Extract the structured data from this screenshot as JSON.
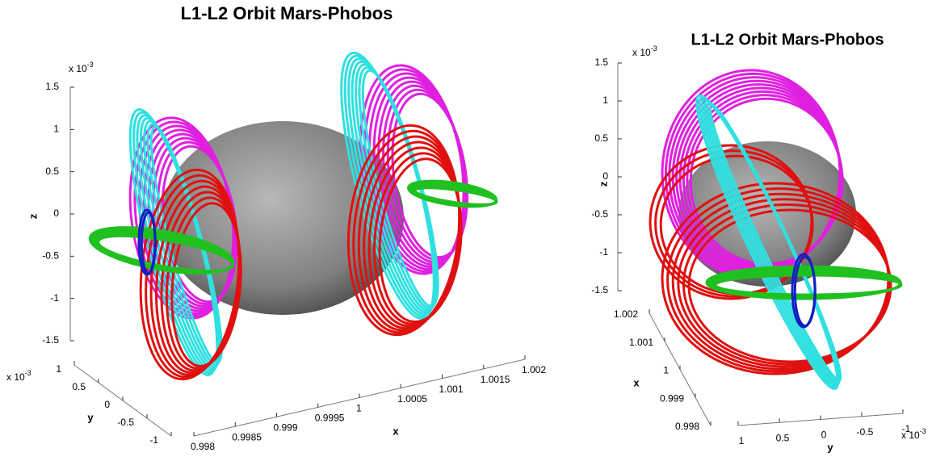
{
  "chart_data": [
    {
      "type": "orbit3d",
      "title": "L1-L2 Orbit Mars-Phobos",
      "xlabel": "x",
      "ylabel": "y",
      "zlabel": "z",
      "xlim": [
        0.998,
        1.002
      ],
      "xticks": [
        0.998,
        0.9985,
        0.999,
        0.9995,
        1,
        1.0005,
        1.001,
        1.0015,
        1.002
      ],
      "ylim": [
        -1,
        1
      ],
      "yticks": [
        -1,
        -0.5,
        0,
        0.5,
        1
      ],
      "y_multiplier": {
        "base": "x 10",
        "exponent": "-3"
      },
      "zlim": [
        -1.5,
        1.5
      ],
      "zticks": [
        -1.5,
        -1,
        -0.5,
        0,
        0.5,
        1,
        1.5
      ],
      "z_multiplier": {
        "base": "x 10",
        "exponent": "-3"
      },
      "orbit_colors": [
        "#e020e0",
        "#30e0e0",
        "#e01010",
        "#20c020",
        "#1020c0"
      ]
    },
    {
      "type": "orbit3d",
      "title": "L1-L2 Orbit Mars-Phobos",
      "xlabel": "x",
      "ylabel": "y",
      "zlabel": "z",
      "xlim": [
        0.998,
        1.002
      ],
      "xticks": [
        0.998,
        0.999,
        1,
        1.001,
        1.002
      ],
      "ylim": [
        -1,
        1
      ],
      "yticks": [
        -1,
        -0.5,
        0,
        0.5,
        1
      ],
      "y_multiplier": {
        "base": "x 10",
        "exponent": "-3"
      },
      "zlim": [
        -1.5,
        1.5
      ],
      "zticks": [
        -1.5,
        -1,
        -0.5,
        0,
        0.5,
        1,
        1.5
      ],
      "z_multiplier": {
        "base": "x 10",
        "exponent": "-3"
      },
      "orbit_colors": [
        "#e020e0",
        "#30e0e0",
        "#e01010",
        "#20c020",
        "#1020c0"
      ]
    }
  ]
}
